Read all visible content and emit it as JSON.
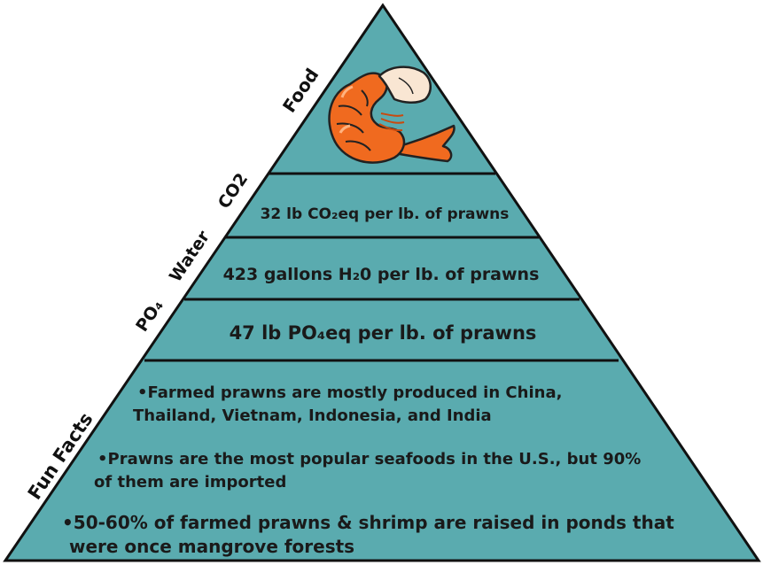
{
  "colors": {
    "pyramid_fill": "#5aabaf",
    "outline": "#111111",
    "shrimp": "#f06a1f",
    "shrimp_dark": "#c94a0e",
    "shrimp_tail": "#f9e6d3"
  },
  "side_labels": {
    "food": "Food",
    "co2": "CO2",
    "water": "Water",
    "po4": "PO₄",
    "fun_facts": "Fun Facts"
  },
  "tiers": {
    "co2": "32 lb CO₂eq per lb. of prawns",
    "water": "423 gallons H₂0 per lb. of prawns",
    "po4": "47 lb PO₄eq per lb. of prawns"
  },
  "fun_facts": [
    {
      "line1": "•Farmed prawns are mostly produced in China,",
      "line2": "Thailand, Vietnam, Indonesia, and India"
    },
    {
      "line1": "•Prawns are the most popular seafoods in the U.S., but 90%",
      "line2": "of them are imported"
    },
    {
      "line1": "•50-60% of farmed prawns & shrimp are raised in ponds that",
      "line2": "were once mangrove forests"
    }
  ],
  "shrimp_icon": "shrimp-icon"
}
